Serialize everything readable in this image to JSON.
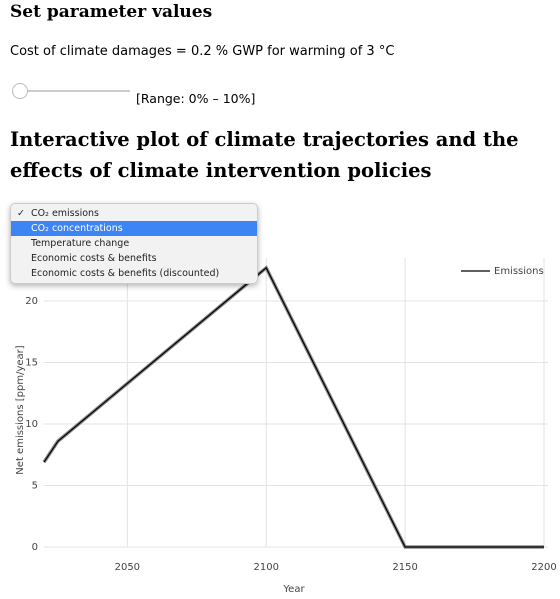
{
  "header": {
    "title": "Set parameter values"
  },
  "parameter": {
    "label": "Cost of climate damages = 0.2 % GWP for warming of 3 °C",
    "range_label": "[Range: 0% – 10%]"
  },
  "section": {
    "title": "Interactive plot of climate trajectories and the effects of climate intervention policies"
  },
  "dropdown": {
    "options": [
      "CO₂ emissions",
      "CO₂ concentrations",
      "Temperature change",
      "Economic costs & benefits",
      "Economic costs & benefits (discounted)"
    ],
    "selected": 0,
    "highlighted": 1
  },
  "chart_data": {
    "type": "line",
    "x_label": "Year",
    "y_label": "Net emissions [ppm/year]",
    "x": [
      2020,
      2025,
      2100,
      2150,
      2200
    ],
    "series": [
      {
        "name": "Emissions",
        "color": "#000000",
        "values": [
          6.9,
          8.6,
          22.7,
          0,
          0
        ]
      }
    ],
    "xlim": [
      2020,
      2200
    ],
    "xticks": [
      2050,
      2100,
      2150,
      2200
    ],
    "ylim": [
      0,
      23.5
    ],
    "yticks": [
      0,
      5,
      10,
      15,
      20
    ],
    "grid": true,
    "legend": "top-right"
  }
}
